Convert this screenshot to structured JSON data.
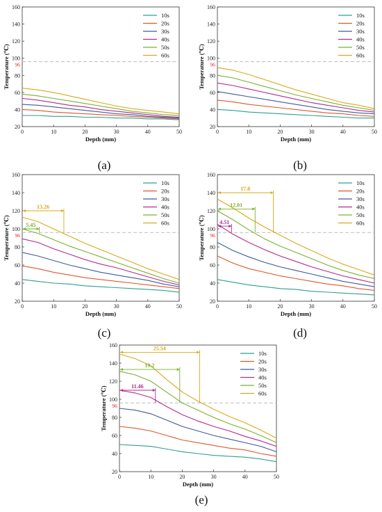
{
  "figure": {
    "colors": {
      "10s": "#2e9e8f",
      "20s": "#e0562a",
      "30s": "#3d5a99",
      "40s": "#b5288f",
      "50s": "#7ab02e",
      "60s": "#d9a81a",
      "threshold": "#bbbbbb",
      "threshold_label": "#e02020"
    }
  },
  "chart_data": [
    {
      "type": "line",
      "label": "(a)",
      "xlabel": "Depth (mm)",
      "ylabel": "Temperature (℃)",
      "xlim": [
        0,
        50
      ],
      "ylim": [
        20,
        160
      ],
      "xticks": [
        0,
        10,
        20,
        30,
        40,
        50
      ],
      "yticks": [
        20,
        40,
        60,
        80,
        100,
        120,
        140,
        160
      ],
      "threshold": 96,
      "threshold_label": "96",
      "legend_position": "top-right",
      "x": [
        0,
        5,
        10,
        15,
        20,
        25,
        30,
        35,
        40,
        45,
        50
      ],
      "series": [
        {
          "name": "10s",
          "values": [
            33,
            33,
            32,
            32,
            31,
            31,
            30,
            30,
            29,
            29,
            28
          ]
        },
        {
          "name": "20s",
          "values": [
            40,
            39,
            37,
            36,
            35,
            34,
            33,
            32,
            31,
            30,
            29
          ]
        },
        {
          "name": "30s",
          "values": [
            46,
            45,
            43,
            41,
            39,
            37,
            35,
            34,
            32,
            31,
            30
          ]
        },
        {
          "name": "40s",
          "values": [
            53,
            51,
            48,
            45,
            43,
            40,
            38,
            36,
            34,
            32,
            31
          ]
        },
        {
          "name": "50s",
          "values": [
            58,
            56,
            53,
            50,
            47,
            44,
            41,
            38,
            36,
            34,
            33
          ]
        },
        {
          "name": "60s",
          "values": [
            65,
            63,
            60,
            56,
            52,
            48,
            44,
            41,
            39,
            37,
            35
          ]
        }
      ],
      "annotations": []
    },
    {
      "type": "line",
      "label": "(b)",
      "xlabel": "Depth (mm)",
      "ylabel": "Temperature (℃)",
      "xlim": [
        0,
        50
      ],
      "ylim": [
        20,
        160
      ],
      "xticks": [
        0,
        10,
        20,
        30,
        40,
        50
      ],
      "yticks": [
        20,
        40,
        60,
        80,
        100,
        120,
        140,
        160
      ],
      "threshold": 96,
      "threshold_label": "96",
      "legend_position": "top-right",
      "x": [
        0,
        5,
        10,
        15,
        20,
        25,
        30,
        35,
        40,
        45,
        50
      ],
      "series": [
        {
          "name": "10s",
          "values": [
            40,
            39,
            37,
            36,
            35,
            34,
            33,
            32,
            31,
            30,
            30
          ]
        },
        {
          "name": "20s",
          "values": [
            51,
            49,
            46,
            44,
            42,
            40,
            38,
            36,
            35,
            33,
            32
          ]
        },
        {
          "name": "30s",
          "values": [
            61,
            58,
            55,
            52,
            49,
            46,
            43,
            40,
            38,
            36,
            35
          ]
        },
        {
          "name": "40s",
          "values": [
            71,
            68,
            64,
            60,
            56,
            52,
            48,
            45,
            42,
            39,
            37
          ]
        },
        {
          "name": "50s",
          "values": [
            80,
            77,
            72,
            67,
            62,
            57,
            53,
            49,
            45,
            42,
            39
          ]
        },
        {
          "name": "60s",
          "values": [
            89,
            86,
            81,
            75,
            69,
            63,
            58,
            53,
            48,
            45,
            41
          ]
        }
      ],
      "annotations": []
    },
    {
      "type": "line",
      "label": "(c)",
      "xlabel": "Depth (mm)",
      "ylabel": "Temperature (℃)",
      "xlim": [
        0,
        50
      ],
      "ylim": [
        20,
        160
      ],
      "xticks": [
        0,
        10,
        20,
        30,
        40,
        50
      ],
      "yticks": [
        20,
        40,
        60,
        80,
        100,
        120,
        140,
        160
      ],
      "threshold": 96,
      "threshold_label": "96",
      "legend_position": "top-right",
      "x": [
        0,
        5,
        10,
        15,
        20,
        25,
        30,
        35,
        40,
        45,
        50
      ],
      "series": [
        {
          "name": "10s",
          "values": [
            44,
            42,
            40,
            39,
            37,
            36,
            35,
            34,
            33,
            32,
            30
          ]
        },
        {
          "name": "20s",
          "values": [
            59,
            56,
            52,
            49,
            46,
            44,
            42,
            40,
            38,
            36,
            34
          ]
        },
        {
          "name": "30s",
          "values": [
            74,
            70,
            65,
            60,
            56,
            52,
            49,
            46,
            43,
            39,
            36
          ]
        },
        {
          "name": "40s",
          "values": [
            89,
            85,
            78,
            72,
            66,
            61,
            57,
            52,
            47,
            42,
            38
          ]
        },
        {
          "name": "50s",
          "values": [
            100,
            95,
            88,
            81,
            75,
            69,
            63,
            57,
            51,
            45,
            40
          ]
        },
        {
          "name": "60s",
          "values": [
            113,
            108,
            100,
            92,
            84,
            77,
            70,
            63,
            56,
            50,
            44
          ]
        }
      ],
      "annotations": [
        {
          "text": "5.45",
          "x_end": 5.45,
          "y": 100,
          "color": "#7ab02e"
        },
        {
          "text": "13.26",
          "x_end": 13.26,
          "y": 120,
          "color": "#d9a81a"
        }
      ]
    },
    {
      "type": "line",
      "label": "(d)",
      "xlabel": "Depth (mm)",
      "ylabel": "Temperature (℃)",
      "xlim": [
        0,
        50
      ],
      "ylim": [
        20,
        160
      ],
      "xticks": [
        0,
        10,
        20,
        30,
        40,
        50
      ],
      "yticks": [
        20,
        40,
        60,
        80,
        100,
        120,
        140,
        160
      ],
      "threshold": 96,
      "threshold_label": "96",
      "legend_position": "top-right",
      "x": [
        0,
        5,
        10,
        15,
        20,
        25,
        30,
        35,
        40,
        45,
        50
      ],
      "series": [
        {
          "name": "10s",
          "values": [
            44,
            41,
            38,
            36,
            34,
            33,
            31,
            30,
            29,
            28,
            27
          ]
        },
        {
          "name": "20s",
          "values": [
            70,
            62,
            56,
            52,
            48,
            45,
            42,
            39,
            37,
            34,
            32
          ]
        },
        {
          "name": "30s",
          "values": [
            85,
            76,
            69,
            63,
            58,
            54,
            50,
            46,
            42,
            39,
            36
          ]
        },
        {
          "name": "40s",
          "values": [
            105,
            94,
            85,
            77,
            70,
            64,
            58,
            53,
            48,
            44,
            40
          ]
        },
        {
          "name": "50s",
          "values": [
            120,
            110,
            99,
            89,
            81,
            74,
            67,
            60,
            54,
            49,
            45
          ]
        },
        {
          "name": "60s",
          "values": [
            133,
            123,
            112,
            102,
            93,
            84,
            76,
            68,
            61,
            55,
            49
          ]
        }
      ],
      "annotations": [
        {
          "text": "4.51",
          "x_end": 4.51,
          "y": 103,
          "color": "#b5288f"
        },
        {
          "text": "12.01",
          "x_end": 12.01,
          "y": 122,
          "color": "#7ab02e"
        },
        {
          "text": "17.8",
          "x_end": 17.8,
          "y": 140,
          "color": "#d9a81a"
        }
      ]
    },
    {
      "type": "line",
      "label": "(e)",
      "xlabel": "Depth (mm)",
      "ylabel": "Temperature (℃)",
      "xlim": [
        0,
        50
      ],
      "ylim": [
        20,
        160
      ],
      "xticks": [
        0,
        10,
        20,
        30,
        40,
        50
      ],
      "yticks": [
        20,
        40,
        60,
        80,
        100,
        120,
        140,
        160
      ],
      "threshold": 96,
      "threshold_label": "96",
      "legend_position": "top-right",
      "x": [
        0,
        5,
        10,
        15,
        20,
        25,
        30,
        35,
        40,
        45,
        50
      ],
      "series": [
        {
          "name": "10s",
          "values": [
            50,
            49,
            48,
            45,
            42,
            40,
            38,
            37,
            36,
            34,
            31
          ]
        },
        {
          "name": "20s",
          "values": [
            70,
            68,
            65,
            60,
            55,
            52,
            49,
            46,
            44,
            40,
            37
          ]
        },
        {
          "name": "30s",
          "values": [
            90,
            88,
            84,
            77,
            70,
            65,
            60,
            56,
            52,
            48,
            42
          ]
        },
        {
          "name": "40s",
          "values": [
            110,
            107,
            102,
            92,
            83,
            76,
            70,
            65,
            59,
            54,
            48
          ]
        },
        {
          "name": "50s",
          "values": [
            131,
            127,
            120,
            108,
            96,
            88,
            80,
            73,
            67,
            60,
            52
          ]
        },
        {
          "name": "60s",
          "values": [
            150,
            145,
            137,
            122,
            108,
            98,
            89,
            81,
            74,
            66,
            57
          ]
        }
      ],
      "annotations": [
        {
          "text": "11.46",
          "x_end": 11.46,
          "y": 110,
          "color": "#b5288f"
        },
        {
          "text": "19.2",
          "x_end": 19.2,
          "y": 133,
          "color": "#7ab02e"
        },
        {
          "text": "25.54",
          "x_end": 25.54,
          "y": 152,
          "color": "#d9a81a"
        }
      ]
    }
  ]
}
